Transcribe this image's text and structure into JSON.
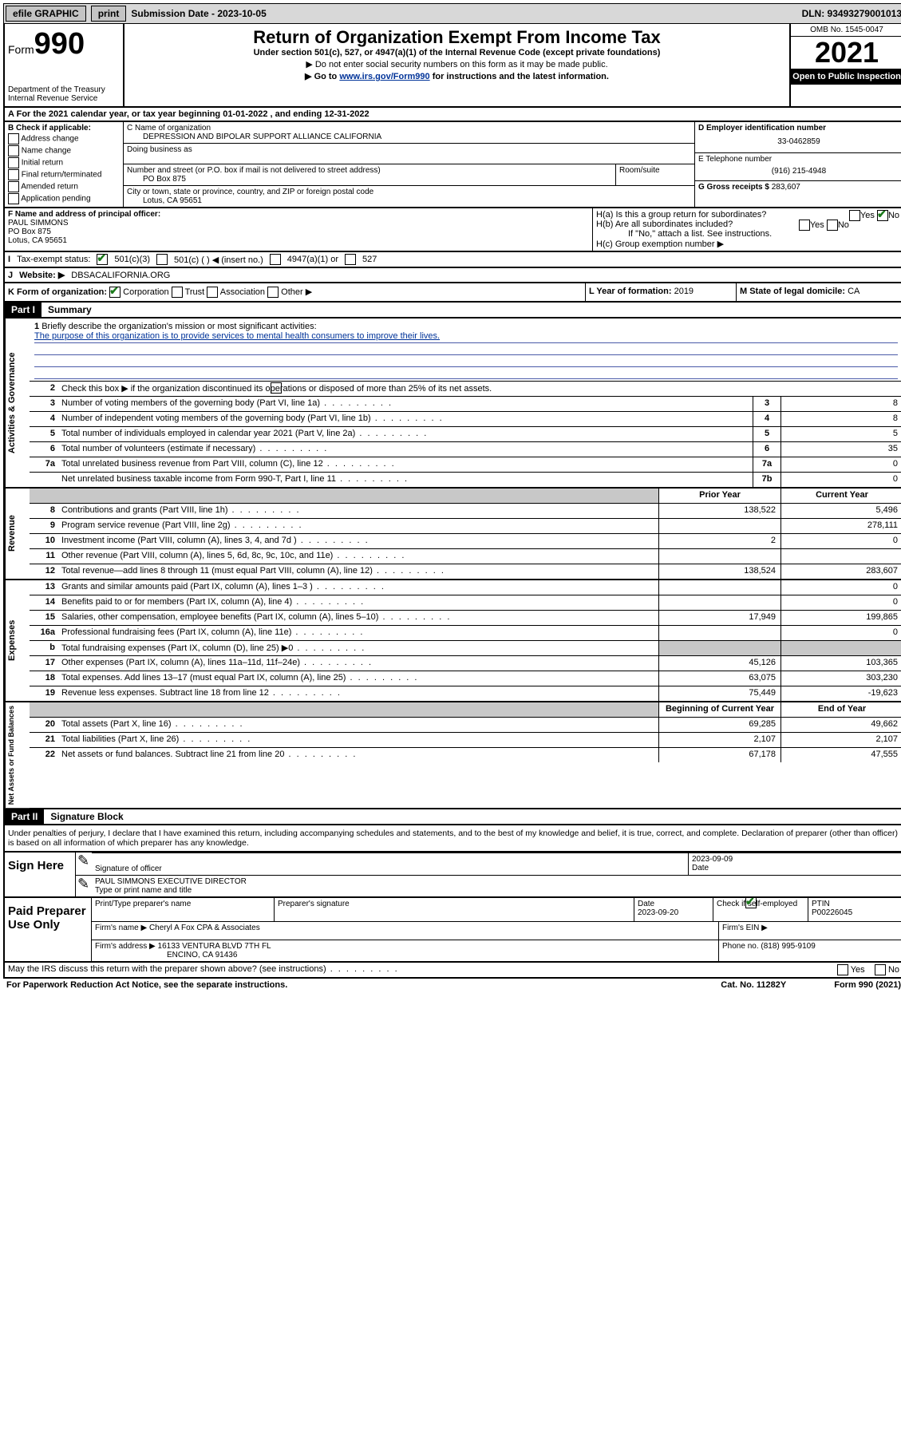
{
  "topbar": {
    "efile": "efile GRAPHIC",
    "print": "print",
    "submission_label": "Submission Date - 2023-10-05",
    "dln": "DLN: 93493279001013"
  },
  "header": {
    "form_prefix": "Form",
    "form_number": "990",
    "dept": "Department of the Treasury",
    "irs": "Internal Revenue Service",
    "title": "Return of Organization Exempt From Income Tax",
    "subtitle": "Under section 501(c), 527, or 4947(a)(1) of the Internal Revenue Code (except private foundations)",
    "note1": "▶ Do not enter social security numbers on this form as it may be made public.",
    "note2_prefix": "▶ Go to ",
    "note2_link": "www.irs.gov/Form990",
    "note2_suffix": " for instructions and the latest information.",
    "omb": "OMB No. 1545-0047",
    "year": "2021",
    "open": "Open to Public Inspection"
  },
  "row_a": "For the 2021 calendar year, or tax year beginning 01-01-2022   , and ending 12-31-2022",
  "section_b": {
    "label": "B Check if applicable:",
    "items": [
      "Address change",
      "Name change",
      "Initial return",
      "Final return/terminated",
      "Amended return",
      "Application pending"
    ]
  },
  "section_c": {
    "name_label": "C Name of organization",
    "name_value": "DEPRESSION AND BIPOLAR SUPPORT ALLIANCE CALIFORNIA",
    "dba_label": "Doing business as",
    "addr_label": "Number and street (or P.O. box if mail is not delivered to street address)",
    "room_label": "Room/suite",
    "addr_value": "PO Box 875",
    "city_label": "City or town, state or province, country, and ZIP or foreign postal code",
    "city_value": "Lotus, CA  95651"
  },
  "section_d": {
    "ein_label": "D Employer identification number",
    "ein_value": "33-0462859"
  },
  "section_e": {
    "tel_label": "E Telephone number",
    "tel_value": "(916) 215-4948"
  },
  "section_g": {
    "gross_label": "G Gross receipts $",
    "gross_value": "283,607"
  },
  "section_f": {
    "label": "F Name and address of principal officer:",
    "name": "PAUL SIMMONS",
    "addr1": "PO Box 875",
    "addr2": "Lotus, CA  95651"
  },
  "section_h": {
    "ha": "H(a)  Is this a group return for subordinates?",
    "hb": "H(b)  Are all subordinates included?",
    "hb_note": "If \"No,\" attach a list. See instructions.",
    "hc": "H(c)  Group exemption number ▶",
    "yes": "Yes",
    "no": "No"
  },
  "section_i": {
    "label": "Tax-exempt status:",
    "opt1": "501(c)(3)",
    "opt2": "501(c) (  ) ◀ (insert no.)",
    "opt3": "4947(a)(1) or",
    "opt4": "527"
  },
  "section_j": {
    "label": "Website: ▶",
    "value": "DBSACALIFORNIA.ORG"
  },
  "section_k": {
    "label": "K Form of organization:",
    "opts": [
      "Corporation",
      "Trust",
      "Association",
      "Other ▶"
    ]
  },
  "section_l": {
    "label": "L Year of formation:",
    "value": "2019"
  },
  "section_m": {
    "label": "M State of legal domicile:",
    "value": "CA"
  },
  "part1": {
    "hdr": "Part I",
    "title": "Summary",
    "q1": "Briefly describe the organization's mission or most significant activities:",
    "q1_ans": "The purpose of this organization is to provide services to mental health consumers to improve their lives.",
    "q2": "Check this box ▶       if the organization discontinued its operations or disposed of more than 25% of its net assets.",
    "lines_gov": [
      {
        "n": "3",
        "t": "Number of voting members of the governing body (Part VI, line 1a)",
        "box": "3",
        "v": "8"
      },
      {
        "n": "4",
        "t": "Number of independent voting members of the governing body (Part VI, line 1b)",
        "box": "4",
        "v": "8"
      },
      {
        "n": "5",
        "t": "Total number of individuals employed in calendar year 2021 (Part V, line 2a)",
        "box": "5",
        "v": "5"
      },
      {
        "n": "6",
        "t": "Total number of volunteers (estimate if necessary)",
        "box": "6",
        "v": "35"
      },
      {
        "n": "7a",
        "t": "Total unrelated business revenue from Part VIII, column (C), line 12",
        "box": "7a",
        "v": "0"
      },
      {
        "n": "",
        "t": "Net unrelated business taxable income from Form 990-T, Part I, line 11",
        "box": "7b",
        "v": "0"
      }
    ],
    "col_hdr_prior": "Prior Year",
    "col_hdr_current": "Current Year",
    "revenue": [
      {
        "n": "8",
        "t": "Contributions and grants (Part VIII, line 1h)",
        "p": "138,522",
        "c": "5,496"
      },
      {
        "n": "9",
        "t": "Program service revenue (Part VIII, line 2g)",
        "p": "",
        "c": "278,111"
      },
      {
        "n": "10",
        "t": "Investment income (Part VIII, column (A), lines 3, 4, and 7d )",
        "p": "2",
        "c": "0"
      },
      {
        "n": "11",
        "t": "Other revenue (Part VIII, column (A), lines 5, 6d, 8c, 9c, 10c, and 11e)",
        "p": "",
        "c": ""
      },
      {
        "n": "12",
        "t": "Total revenue—add lines 8 through 11 (must equal Part VIII, column (A), line 12)",
        "p": "138,524",
        "c": "283,607"
      }
    ],
    "expenses": [
      {
        "n": "13",
        "t": "Grants and similar amounts paid (Part IX, column (A), lines 1–3 )",
        "p": "",
        "c": "0"
      },
      {
        "n": "14",
        "t": "Benefits paid to or for members (Part IX, column (A), line 4)",
        "p": "",
        "c": "0"
      },
      {
        "n": "15",
        "t": "Salaries, other compensation, employee benefits (Part IX, column (A), lines 5–10)",
        "p": "17,949",
        "c": "199,865"
      },
      {
        "n": "16a",
        "t": "Professional fundraising fees (Part IX, column (A), line 11e)",
        "p": "",
        "c": "0"
      },
      {
        "n": "b",
        "t": "Total fundraising expenses (Part IX, column (D), line 25) ▶0",
        "p": "GREY",
        "c": "GREY"
      },
      {
        "n": "17",
        "t": "Other expenses (Part IX, column (A), lines 11a–11d, 11f–24e)",
        "p": "45,126",
        "c": "103,365"
      },
      {
        "n": "18",
        "t": "Total expenses. Add lines 13–17 (must equal Part IX, column (A), line 25)",
        "p": "63,075",
        "c": "303,230"
      },
      {
        "n": "19",
        "t": "Revenue less expenses. Subtract line 18 from line 12",
        "p": "75,449",
        "c": "-19,623"
      }
    ],
    "col_hdr_begin": "Beginning of Current Year",
    "col_hdr_end": "End of Year",
    "netassets": [
      {
        "n": "20",
        "t": "Total assets (Part X, line 16)",
        "p": "69,285",
        "c": "49,662"
      },
      {
        "n": "21",
        "t": "Total liabilities (Part X, line 26)",
        "p": "2,107",
        "c": "2,107"
      },
      {
        "n": "22",
        "t": "Net assets or fund balances. Subtract line 21 from line 20",
        "p": "67,178",
        "c": "47,555"
      }
    ],
    "tab_gov": "Activities & Governance",
    "tab_rev": "Revenue",
    "tab_exp": "Expenses",
    "tab_net": "Net Assets or Fund Balances"
  },
  "part2": {
    "hdr": "Part II",
    "title": "Signature Block",
    "decl": "Under penalties of perjury, I declare that I have examined this return, including accompanying schedules and statements, and to the best of my knowledge and belief, it is true, correct, and complete. Declaration of preparer (other than officer) is based on all information of which preparer has any knowledge."
  },
  "sign": {
    "left": "Sign Here",
    "sig_label": "Signature of officer",
    "date_label": "Date",
    "date_value": "2023-09-09",
    "name_value": "PAUL SIMMONS EXECUTIVE DIRECTOR",
    "name_label": "Type or print name and title"
  },
  "preparer": {
    "left": "Paid Preparer Use Only",
    "r1": {
      "c1_label": "Print/Type preparer's name",
      "c2_label": "Preparer's signature",
      "c3_label": "Date",
      "c3_value": "2023-09-20",
      "c4_label": "Check         if self-employed",
      "c5_label": "PTIN",
      "c5_value": "P00226045"
    },
    "r2": {
      "firm_label": "Firm's name     ▶",
      "firm_value": "Cheryl A Fox CPA & Associates",
      "ein_label": "Firm's EIN ▶"
    },
    "r3": {
      "addr_label": "Firm's address ▶",
      "addr_value1": "16133 VENTURA BLVD 7TH FL",
      "addr_value2": "ENCINO, CA  91436",
      "phone_label": "Phone no.",
      "phone_value": "(818) 995-9109"
    }
  },
  "footer": {
    "discuss": "May the IRS discuss this return with the preparer shown above? (see instructions)",
    "yes": "Yes",
    "no": "No",
    "paperwork": "For Paperwork Reduction Act Notice, see the separate instructions.",
    "cat": "Cat. No. 11282Y",
    "form": "Form 990 (2021)"
  }
}
